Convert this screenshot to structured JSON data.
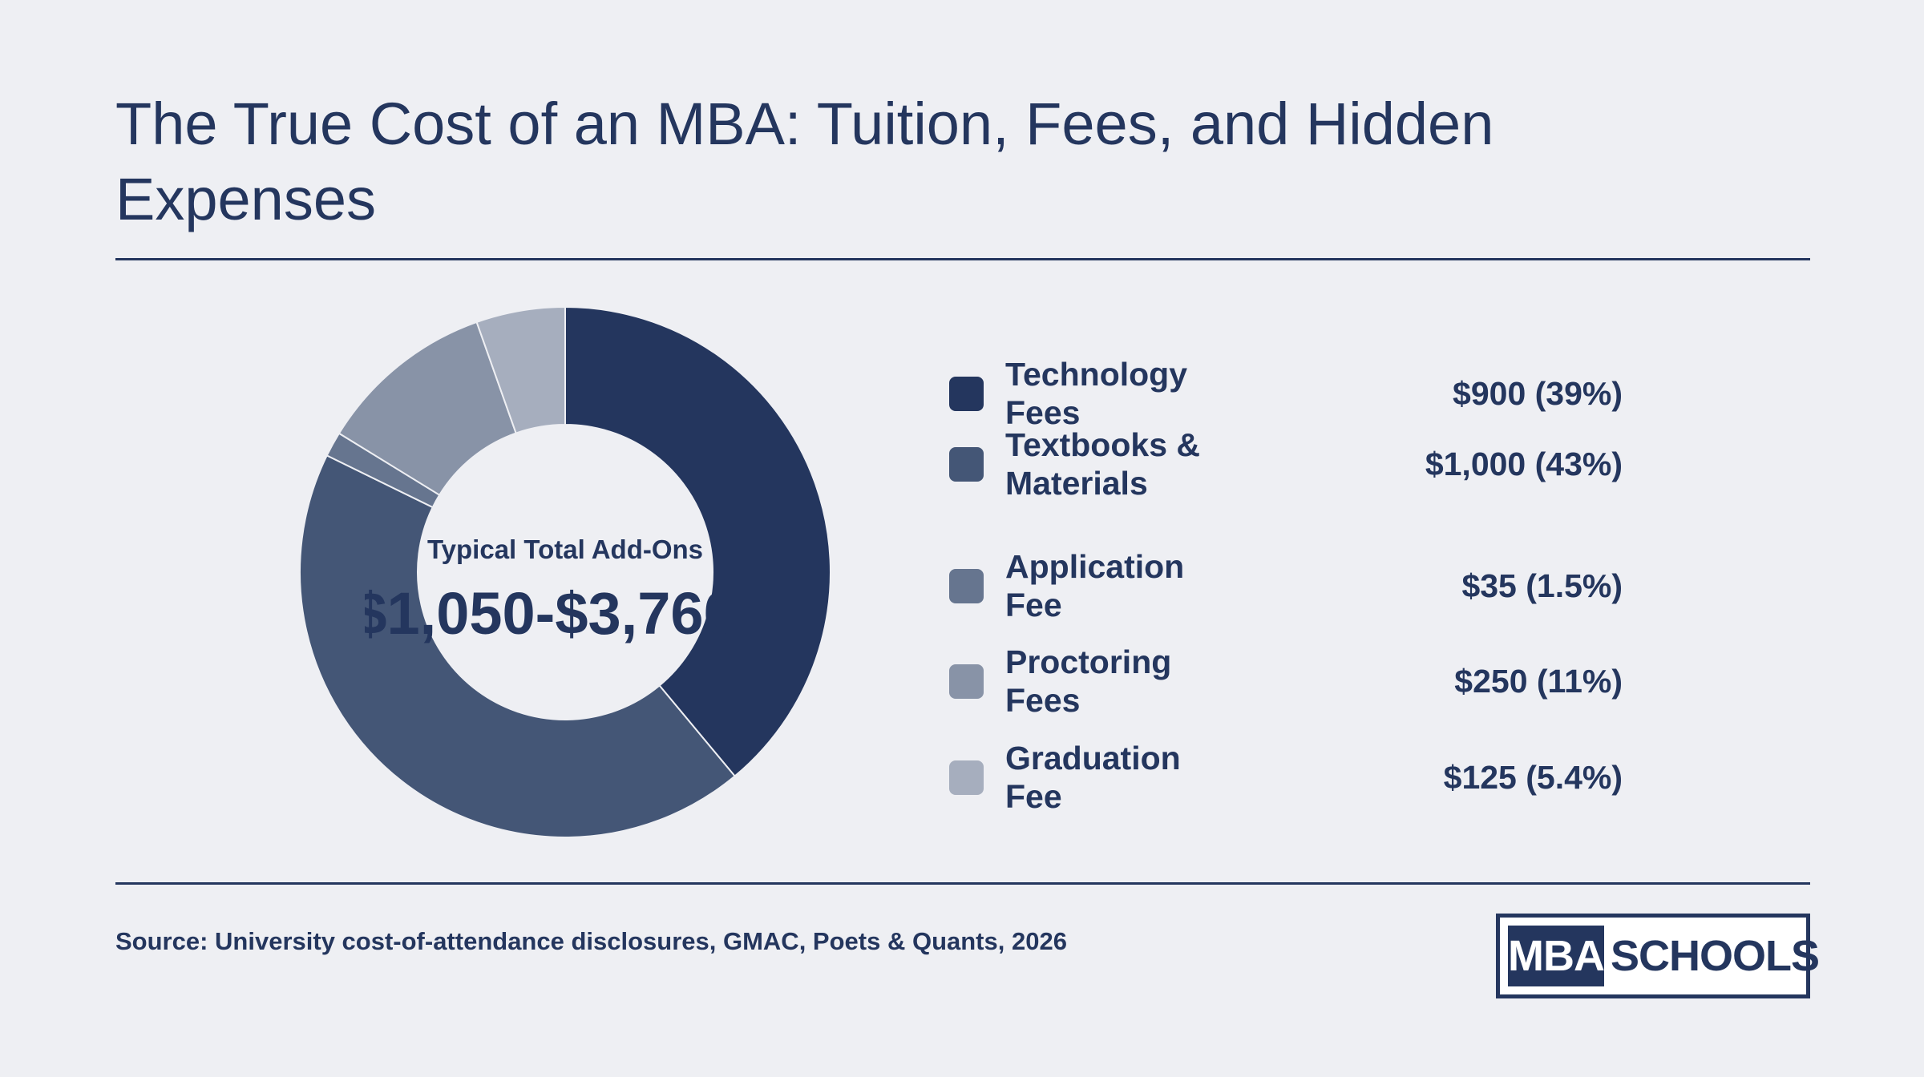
{
  "header": {
    "title": "The True Cost of an MBA: Tuition, Fees, and Hidden Expenses"
  },
  "chart_data": {
    "type": "pie",
    "style": "donut",
    "center_label": "Typical Total Add-Ons",
    "center_value": "$1,050-$3,760",
    "slices": [
      {
        "label": "Technology Fees",
        "value": 900,
        "value_text": "$900 (39%)",
        "percent": 39,
        "color": "#24365e"
      },
      {
        "label": "Textbooks & Materials",
        "value": 1000,
        "value_text": "$1,000 (43%)",
        "percent": 43,
        "color": "#445676"
      },
      {
        "label": "Application Fee",
        "value": 35,
        "value_text": "$35 (1.5%)",
        "percent": 1.5,
        "color": "#66758f"
      },
      {
        "label": "Proctoring Fees",
        "value": 250,
        "value_text": "$250 (11%)",
        "percent": 11,
        "color": "#8893a7"
      },
      {
        "label": "Graduation Fee",
        "value": 125,
        "value_text": "$125 (5.4%)",
        "percent": 5.4,
        "color": "#a6aebe"
      }
    ]
  },
  "footer": {
    "source": "Source: University cost-of-attendance disclosures, GMAC, Poets & Quants, 2026",
    "logo_part1": "MBA",
    "logo_part2": "SCHOOLS"
  }
}
